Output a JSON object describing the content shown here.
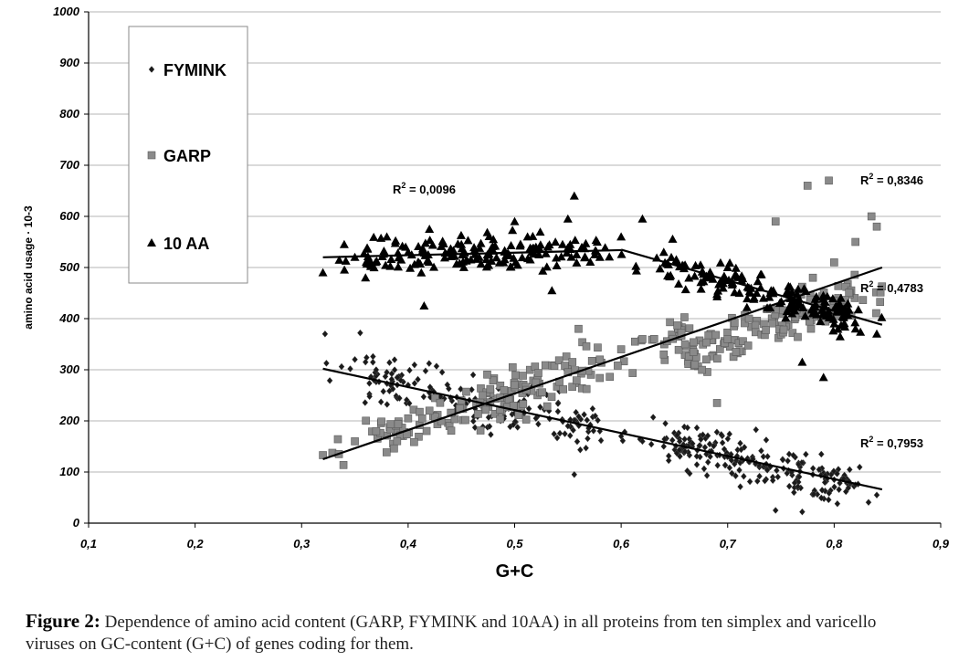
{
  "chart_data": {
    "type": "scatter",
    "xlabel": "G+C",
    "ylabel": "amino acid usage · 10-3",
    "xlim": [
      0.1,
      0.9
    ],
    "ylim": [
      0,
      1000
    ],
    "x_ticks": [
      "0,1",
      "0,2",
      "0,3",
      "0,4",
      "0,5",
      "0,6",
      "0,7",
      "0,8",
      "0,9"
    ],
    "y_ticks": [
      "0",
      "100",
      "200",
      "300",
      "400",
      "500",
      "600",
      "700",
      "800",
      "900",
      "1000"
    ],
    "grid": "horizontal",
    "legend_placement": "top-left",
    "series": [
      {
        "name": "FYMINK",
        "marker": "diamond",
        "color": "#1a1a1a",
        "x_range": [
          0.32,
          0.845
        ],
        "trend": {
          "x": [
            0.32,
            0.845
          ],
          "y": [
            302,
            66
          ]
        },
        "r2": "0,7953",
        "points": [
          [
            0.322,
            370
          ],
          [
            0.355,
            372
          ],
          [
            0.35,
            320
          ],
          [
            0.36,
            315
          ],
          [
            0.37,
            300
          ],
          [
            0.38,
            295
          ],
          [
            0.39,
            285
          ],
          [
            0.4,
            270
          ],
          [
            0.42,
            255
          ],
          [
            0.44,
            245
          ],
          [
            0.45,
            240
          ],
          [
            0.47,
            230
          ],
          [
            0.49,
            220
          ],
          [
            0.5,
            215
          ],
          [
            0.52,
            205
          ],
          [
            0.55,
            190
          ],
          [
            0.556,
            95
          ],
          [
            0.58,
            180
          ],
          [
            0.6,
            170
          ],
          [
            0.62,
            160
          ],
          [
            0.64,
            150
          ],
          [
            0.66,
            140
          ],
          [
            0.68,
            135
          ],
          [
            0.7,
            130
          ],
          [
            0.72,
            120
          ],
          [
            0.74,
            110
          ],
          [
            0.76,
            100
          ],
          [
            0.78,
            95
          ],
          [
            0.8,
            85
          ],
          [
            0.82,
            75
          ],
          [
            0.84,
            55
          ],
          [
            0.745,
            25
          ],
          [
            0.77,
            22
          ]
        ]
      },
      {
        "name": "GARP",
        "marker": "square",
        "color": "#8a8a8a",
        "x_range": [
          0.32,
          0.845
        ],
        "trend": {
          "x": [
            0.32,
            0.845
          ],
          "y": [
            125,
            500
          ]
        },
        "r2": "0,4783",
        "points": [
          [
            0.32,
            133
          ],
          [
            0.335,
            135
          ],
          [
            0.35,
            160
          ],
          [
            0.37,
            180
          ],
          [
            0.4,
            205
          ],
          [
            0.42,
            220
          ],
          [
            0.45,
            240
          ],
          [
            0.47,
            250
          ],
          [
            0.49,
            260
          ],
          [
            0.5,
            270
          ],
          [
            0.52,
            275
          ],
          [
            0.55,
            295
          ],
          [
            0.56,
            380
          ],
          [
            0.58,
            320
          ],
          [
            0.6,
            340
          ],
          [
            0.62,
            360
          ],
          [
            0.64,
            330
          ],
          [
            0.66,
            350
          ],
          [
            0.68,
            320
          ],
          [
            0.7,
            360
          ],
          [
            0.72,
            400
          ],
          [
            0.74,
            420
          ],
          [
            0.745,
            590
          ],
          [
            0.76,
            450
          ],
          [
            0.775,
            660
          ],
          [
            0.795,
            670
          ],
          [
            0.78,
            480
          ],
          [
            0.8,
            510
          ],
          [
            0.82,
            550
          ],
          [
            0.835,
            600
          ],
          [
            0.84,
            580
          ],
          [
            0.69,
            235
          ]
        ]
      },
      {
        "name": "10 AA",
        "marker": "triangle",
        "color": "#000000",
        "x_range": [
          0.32,
          0.845
        ],
        "trend_segments": [
          {
            "x": [
              0.32,
              0.6
            ],
            "y": [
              520,
              534
            ],
            "color": "#000000",
            "r2": "0,0096"
          },
          {
            "x": [
              0.6,
              0.845
            ],
            "y": [
              535,
              388
            ],
            "color": "#000000",
            "r2": "0,8346"
          }
        ],
        "points": [
          [
            0.32,
            490
          ],
          [
            0.34,
            545
          ],
          [
            0.35,
            520
          ],
          [
            0.36,
            480
          ],
          [
            0.38,
            560
          ],
          [
            0.4,
            530
          ],
          [
            0.415,
            425
          ],
          [
            0.42,
            575
          ],
          [
            0.45,
            545
          ],
          [
            0.48,
            555
          ],
          [
            0.5,
            590
          ],
          [
            0.52,
            540
          ],
          [
            0.535,
            455
          ],
          [
            0.55,
            595
          ],
          [
            0.556,
            640
          ],
          [
            0.58,
            520
          ],
          [
            0.6,
            560
          ],
          [
            0.62,
            595
          ],
          [
            0.64,
            530
          ],
          [
            0.66,
            505
          ],
          [
            0.68,
            480
          ],
          [
            0.7,
            500
          ],
          [
            0.72,
            460
          ],
          [
            0.74,
            450
          ],
          [
            0.76,
            430
          ],
          [
            0.78,
            410
          ],
          [
            0.79,
            285
          ],
          [
            0.77,
            315
          ],
          [
            0.8,
            390
          ],
          [
            0.82,
            380
          ],
          [
            0.84,
            370
          ]
        ]
      }
    ],
    "annotations": [
      {
        "text_base": "R",
        "sup": "2",
        "value": " = 0,0096"
      },
      {
        "text_base": "R",
        "sup": "2",
        "value": " = 0,8346"
      },
      {
        "text_base": "R",
        "sup": "2",
        "value": " = 0,4783"
      },
      {
        "text_base": "R",
        "sup": "2",
        "value": " = 0,7953"
      }
    ]
  },
  "caption": {
    "label": "Figure 2:",
    "line1": " Dependence of amino acid content (GARP, FYMINK and 10AA) in all proteins from ten simplex and varicello",
    "line2": "viruses on GC-content (G+C) of genes coding for them."
  }
}
